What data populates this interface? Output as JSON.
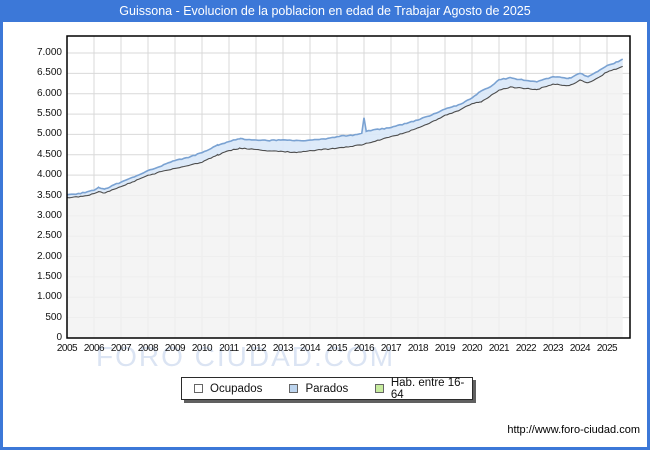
{
  "header": {
    "title": "Guissona - Evolucion de la poblacion en edad de Trabajar Agosto de 2025"
  },
  "footer": {
    "url": "http://www.foro-ciudad.com"
  },
  "watermark": "FORO CIUDAD.COM",
  "colors": {
    "accent_blue": "#3c78d8",
    "grid": "#d9d9d9",
    "axis_border": "#000000",
    "ocupados_line": "#4d4d4d",
    "ocupados_fill": "#f1f1f1",
    "parados_line": "#7aa2d2",
    "parados_fill": "#d9e8f8",
    "legend_swatch_ocupados": "#ffffff",
    "legend_swatch_parados": "#bcd4ee",
    "legend_swatch_hab": "#c7ec9e",
    "watermark_color": "#dbe4f3"
  },
  "chart_data": {
    "type": "area",
    "title": "Guissona - Evolucion de la poblacion en edad de Trabajar Agosto de 2025",
    "xlabel": "",
    "ylabel": "",
    "xlim": [
      2005,
      2025.85
    ],
    "ylim": [
      0,
      7000
    ],
    "grid": true,
    "legend_position": "bottom",
    "x_tick_labels": [
      "2005",
      "2006",
      "2007",
      "2008",
      "2009",
      "2010",
      "2011",
      "2012",
      "2013",
      "2014",
      "2015",
      "2016",
      "2017",
      "2018",
      "2019",
      "2020",
      "2021",
      "2022",
      "2023",
      "2024",
      "2025"
    ],
    "y_tick_labels": [
      "0",
      "500",
      "1.000",
      "1.500",
      "2.000",
      "2.500",
      "3.000",
      "3.500",
      "4.000",
      "4.500",
      "5.000",
      "5.500",
      "6.000",
      "6.500",
      "7.000"
    ],
    "y_tick_values": [
      0,
      500,
      1000,
      1500,
      2000,
      2500,
      3000,
      3500,
      4000,
      4500,
      5000,
      5500,
      6000,
      6500,
      7000
    ],
    "legend": [
      {
        "label": "Ocupados",
        "swatch_color": "#ffffff"
      },
      {
        "label": "Parados",
        "swatch_color": "#bcd4ee"
      },
      {
        "label": "Hab. entre 16-64",
        "swatch_color": "#c7ec9e"
      }
    ],
    "series": [
      {
        "name": "Ocupados",
        "style": "area",
        "note": "lower dark line; monthly series approximated by anchor points [year, persons]",
        "points": [
          [
            2005.0,
            3450
          ],
          [
            2005.5,
            3470
          ],
          [
            2006.0,
            3540
          ],
          [
            2006.17,
            3600
          ],
          [
            2006.4,
            3560
          ],
          [
            2007.0,
            3720
          ],
          [
            2007.5,
            3850
          ],
          [
            2008.0,
            3990
          ],
          [
            2008.5,
            4090
          ],
          [
            2009.0,
            4170
          ],
          [
            2009.5,
            4230
          ],
          [
            2010.0,
            4320
          ],
          [
            2010.6,
            4500
          ],
          [
            2011.0,
            4600
          ],
          [
            2011.4,
            4660
          ],
          [
            2012.0,
            4630
          ],
          [
            2012.5,
            4590
          ],
          [
            2013.0,
            4580
          ],
          [
            2013.5,
            4560
          ],
          [
            2014.0,
            4600
          ],
          [
            2014.5,
            4630
          ],
          [
            2015.0,
            4660
          ],
          [
            2015.5,
            4700
          ],
          [
            2016.0,
            4760
          ],
          [
            2016.5,
            4850
          ],
          [
            2017.0,
            4940
          ],
          [
            2017.5,
            5040
          ],
          [
            2018.0,
            5160
          ],
          [
            2018.5,
            5300
          ],
          [
            2019.0,
            5470
          ],
          [
            2019.5,
            5580
          ],
          [
            2020.0,
            5760
          ],
          [
            2020.3,
            5790
          ],
          [
            2020.7,
            5950
          ],
          [
            2021.0,
            6090
          ],
          [
            2021.4,
            6160
          ],
          [
            2022.0,
            6130
          ],
          [
            2022.4,
            6100
          ],
          [
            2023.0,
            6240
          ],
          [
            2023.6,
            6200
          ],
          [
            2024.0,
            6330
          ],
          [
            2024.3,
            6260
          ],
          [
            2024.7,
            6400
          ],
          [
            2025.0,
            6540
          ],
          [
            2025.3,
            6600
          ],
          [
            2025.58,
            6670
          ]
        ]
      },
      {
        "name": "Parados",
        "style": "band",
        "note": "light-blue band stacked on Ocupados; points are Ocupados+Parados totals (upper blue line), spike Jan 2016",
        "points": [
          [
            2005.0,
            3520
          ],
          [
            2005.5,
            3550
          ],
          [
            2006.0,
            3630
          ],
          [
            2006.17,
            3690
          ],
          [
            2006.4,
            3660
          ],
          [
            2007.0,
            3830
          ],
          [
            2007.5,
            3960
          ],
          [
            2008.0,
            4110
          ],
          [
            2008.5,
            4230
          ],
          [
            2009.0,
            4360
          ],
          [
            2009.5,
            4440
          ],
          [
            2010.0,
            4550
          ],
          [
            2010.6,
            4740
          ],
          [
            2011.0,
            4830
          ],
          [
            2011.4,
            4890
          ],
          [
            2012.0,
            4870
          ],
          [
            2012.5,
            4850
          ],
          [
            2013.0,
            4870
          ],
          [
            2013.5,
            4850
          ],
          [
            2014.0,
            4860
          ],
          [
            2014.5,
            4880
          ],
          [
            2015.0,
            4950
          ],
          [
            2015.75,
            4990
          ],
          [
            2015.92,
            5030
          ],
          [
            2016.0,
            5400
          ],
          [
            2016.08,
            5080
          ],
          [
            2016.5,
            5120
          ],
          [
            2017.0,
            5170
          ],
          [
            2017.5,
            5260
          ],
          [
            2018.0,
            5360
          ],
          [
            2018.5,
            5480
          ],
          [
            2019.0,
            5620
          ],
          [
            2019.5,
            5720
          ],
          [
            2020.0,
            5890
          ],
          [
            2020.3,
            6060
          ],
          [
            2020.7,
            6180
          ],
          [
            2021.0,
            6340
          ],
          [
            2021.4,
            6390
          ],
          [
            2022.0,
            6330
          ],
          [
            2022.4,
            6290
          ],
          [
            2023.0,
            6420
          ],
          [
            2023.6,
            6380
          ],
          [
            2024.0,
            6500
          ],
          [
            2024.3,
            6420
          ],
          [
            2024.7,
            6560
          ],
          [
            2025.0,
            6700
          ],
          [
            2025.3,
            6760
          ],
          [
            2025.58,
            6850
          ]
        ]
      },
      {
        "name": "Hab. entre 16-64",
        "style": "legend-only",
        "note": "green legend entry; no visibly distinct line in the plotted pixels",
        "points": []
      }
    ]
  }
}
